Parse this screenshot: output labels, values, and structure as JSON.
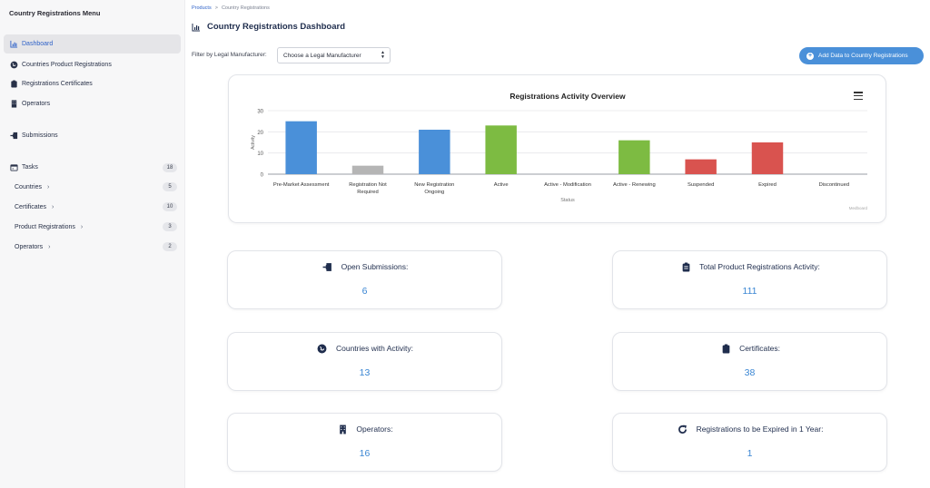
{
  "sidebar": {
    "title": "Country Registrations Menu",
    "items": [
      {
        "label": "Dashboard",
        "icon": "chart-icon"
      },
      {
        "label": "Countries Product Registrations",
        "icon": "globe-icon"
      },
      {
        "label": "Registrations Certificates",
        "icon": "clipboard-icon"
      },
      {
        "label": "Operators",
        "icon": "building-icon"
      },
      {
        "label": "Submissions",
        "icon": "submit-icon"
      },
      {
        "label": "Tasks",
        "icon": "calendar-icon",
        "count": "18"
      }
    ],
    "subitems": [
      {
        "label": "Countries",
        "count": "5"
      },
      {
        "label": "Certificates",
        "count": "10"
      },
      {
        "label": "Product Registrations",
        "count": "3"
      },
      {
        "label": "Operators",
        "count": "2"
      }
    ]
  },
  "breadcrumb": {
    "root": "Products",
    "separator": ">",
    "current": "Country Registrations"
  },
  "page_title": "Country Registrations Dashboard",
  "filter": {
    "label": "Filter by Legal Manufacturer:",
    "value": "Choose a Legal Manufacturer"
  },
  "add_button": "Add Data to Country Registrations",
  "chart_data": {
    "type": "bar",
    "title": "Registrations Activity Overview",
    "xlabel": "Status",
    "ylabel": "Activity",
    "credit": "Medboard",
    "ylim": [
      0,
      30
    ],
    "yticks": [
      0,
      10,
      20,
      30
    ],
    "grid": true,
    "categories": [
      [
        "Pre-Market Assessment"
      ],
      [
        "Registration Not",
        "Required"
      ],
      [
        "New Registration",
        "Ongoing"
      ],
      [
        "Active"
      ],
      [
        "Active - Modification"
      ],
      [
        "Active - Renewing"
      ],
      [
        "Suspended"
      ],
      [
        "Expired"
      ],
      [
        "Discontinued"
      ]
    ],
    "values": [
      25,
      4,
      21,
      23,
      0,
      16,
      7,
      15,
      0
    ],
    "colors": [
      "#4a90d9",
      "#b5b5b5",
      "#4a90d9",
      "#7dbb42",
      "#7dbb42",
      "#7dbb42",
      "#d9534f",
      "#d9534f",
      "#d9534f"
    ]
  },
  "stats": [
    {
      "label": "Open Submissions:",
      "value": "6",
      "icon": "submit-icon"
    },
    {
      "label": "Total Product Registrations Activity:",
      "value": "111",
      "icon": "clipboard-icon"
    },
    {
      "label": "Countries with Activity:",
      "value": "13",
      "icon": "globe-icon"
    },
    {
      "label": "Certificates:",
      "value": "38",
      "icon": "clipboard-icon"
    },
    {
      "label": "Operators:",
      "value": "16",
      "icon": "building-icon"
    },
    {
      "label": "Registrations to be Expired in 1 Year:",
      "value": "1",
      "icon": "refresh-icon"
    }
  ]
}
